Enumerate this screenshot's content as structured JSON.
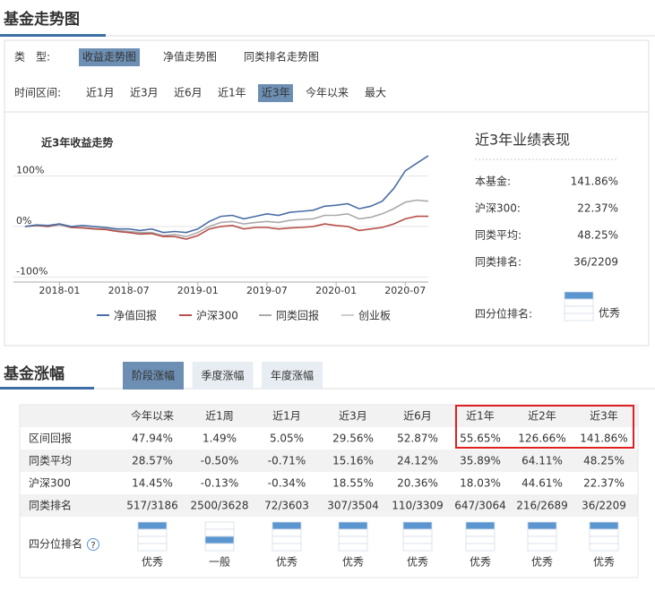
{
  "section1": {
    "title": "基金走势图",
    "filters": [
      {
        "label": "类　型:",
        "options": [
          "收益走势图",
          "净值走势图",
          "同类排名走势图"
        ],
        "active": 0
      },
      {
        "label": "时间区间:",
        "options": [
          "近1月",
          "近3月",
          "近6月",
          "近1年",
          "近3年",
          "今年以来",
          "最大"
        ],
        "active": 4
      }
    ]
  },
  "chart_data": {
    "type": "line",
    "title": "近3年收益走势",
    "x": [
      "2017-10",
      "2017-11",
      "2017-12",
      "2018-01",
      "2018-02",
      "2018-03",
      "2018-04",
      "2018-05",
      "2018-06",
      "2018-07",
      "2018-08",
      "2018-09",
      "2018-10",
      "2018-11",
      "2018-12",
      "2019-01",
      "2019-02",
      "2019-03",
      "2019-04",
      "2019-05",
      "2019-06",
      "2019-07",
      "2019-08",
      "2019-09",
      "2019-10",
      "2019-11",
      "2019-12",
      "2020-01",
      "2020-02",
      "2020-03",
      "2020-04",
      "2020-05",
      "2020-06",
      "2020-07",
      "2020-08",
      "2020-09"
    ],
    "xlim": [
      "2017-09",
      "2020-09"
    ],
    "xticks": [
      "2018-01",
      "2018-07",
      "2019-01",
      "2019-07",
      "2020-01",
      "2020-07"
    ],
    "ylim": [
      -110,
      200
    ],
    "yticks": [
      {
        "value": -100,
        "label": "-100%"
      },
      {
        "value": 0,
        "label": "0%"
      },
      {
        "value": 100,
        "label": "100%"
      }
    ],
    "grid": true,
    "series": [
      {
        "name": "净值回报",
        "color": "#4a6fa5",
        "values": [
          0,
          3,
          2,
          5,
          0,
          2,
          0,
          -2,
          -5,
          -5,
          -8,
          -5,
          -12,
          -10,
          -12,
          -5,
          10,
          20,
          22,
          15,
          20,
          25,
          22,
          28,
          30,
          32,
          40,
          42,
          45,
          35,
          40,
          50,
          75,
          110,
          125,
          140
        ]
      },
      {
        "name": "沪深300",
        "color": "#b5504a",
        "values": [
          0,
          2,
          0,
          5,
          -2,
          -3,
          -5,
          -6,
          -10,
          -12,
          -15,
          -14,
          -20,
          -20,
          -25,
          -18,
          -5,
          0,
          2,
          -5,
          -2,
          -2,
          -5,
          -3,
          -2,
          0,
          5,
          2,
          0,
          -8,
          -5,
          -2,
          5,
          15,
          20,
          20
        ]
      },
      {
        "name": "同类回报",
        "color": "#aaaaaa",
        "values": [
          0,
          2,
          0,
          3,
          -2,
          -2,
          -4,
          -5,
          -8,
          -10,
          -12,
          -12,
          -18,
          -16,
          -20,
          -12,
          0,
          8,
          10,
          5,
          8,
          10,
          8,
          12,
          14,
          15,
          22,
          22,
          25,
          15,
          18,
          25,
          35,
          48,
          52,
          50
        ]
      },
      {
        "name": "创业板",
        "color": "#cccccc",
        "hidden": true
      }
    ]
  },
  "performance": {
    "title": "近3年业绩表现",
    "rows": [
      {
        "label": "本基金:",
        "value": "141.86%"
      },
      {
        "label": "沪深300:",
        "value": "22.37%"
      },
      {
        "label": "同类平均:",
        "value": "48.25%"
      },
      {
        "label": "同类排名:",
        "value": "36/2209"
      }
    ],
    "quartile": {
      "label": "四分位排名:",
      "rank": 1,
      "text": "优秀"
    }
  },
  "section2": {
    "title": "基金涨幅",
    "tabs": [
      "阶段涨幅",
      "季度涨幅",
      "年度涨幅"
    ],
    "active": 0
  },
  "table": {
    "columns": [
      "今年以来",
      "近1周",
      "近1月",
      "近3月",
      "近6月",
      "近1年",
      "近2年",
      "近3年"
    ],
    "rows": [
      {
        "label": "区间回报",
        "cells": [
          "47.94%",
          "1.49%",
          "5.05%",
          "29.56%",
          "52.87%",
          "55.65%",
          "126.66%",
          "141.86%"
        ]
      },
      {
        "label": "同类平均",
        "cells": [
          "28.57%",
          "-0.50%",
          "-0.71%",
          "15.16%",
          "24.12%",
          "35.89%",
          "64.11%",
          "48.25%"
        ]
      },
      {
        "label": "沪深300",
        "cells": [
          "14.45%",
          "-0.13%",
          "-0.34%",
          "18.55%",
          "20.36%",
          "18.03%",
          "44.61%",
          "22.37%"
        ]
      },
      {
        "label": "同类排名",
        "cells": [
          "517/3186",
          "2500/3628",
          "72/3603",
          "307/3504",
          "110/3309",
          "647/3064",
          "216/2689",
          "36/2209"
        ]
      }
    ],
    "quartile_row": {
      "label": "四分位排名",
      "ranks": [
        1,
        3,
        1,
        1,
        1,
        1,
        1,
        1
      ],
      "texts": [
        "优秀",
        "一般",
        "优秀",
        "优秀",
        "优秀",
        "优秀",
        "优秀",
        "优秀"
      ]
    }
  }
}
